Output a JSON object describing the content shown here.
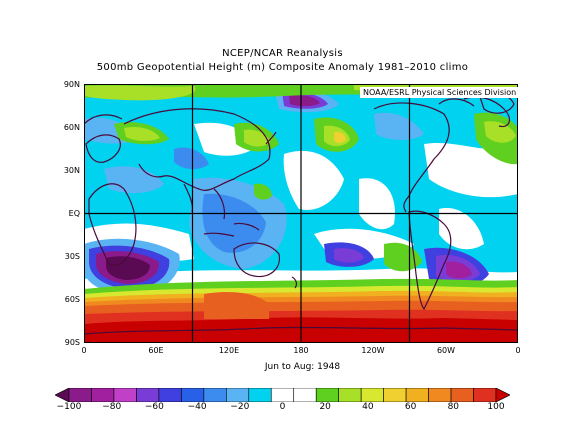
{
  "title_line1": "NCEP/NCAR Reanalysis",
  "title_line2": "500mb Geopotential Height (m) Composite Anomaly 1981–2010 climo",
  "credit": "NOAA/ESRL Physical Sciences Division",
  "caption": "Jun to Aug: 1948",
  "lat_labels": [
    "90N",
    "60N",
    "30N",
    "EQ",
    "30S",
    "60S",
    "90S"
  ],
  "lon_labels": [
    "0",
    "60E",
    "120E",
    "180",
    "120W",
    "60W",
    "0"
  ],
  "colorbar": {
    "labels": [
      "−100",
      "−80",
      "−60",
      "−40",
      "−20",
      "0",
      "20",
      "40",
      "60",
      "80",
      "100"
    ],
    "colors": [
      "#5a0a52",
      "#8b1a8b",
      "#a020a0",
      "#c040c8",
      "#7a3cd6",
      "#4040e0",
      "#2860e8",
      "#3c8cf0",
      "#5ab4f4",
      "#00d2f0",
      "#ffffff",
      "#ffffff",
      "#60d020",
      "#a8e028",
      "#d8e830",
      "#f0d030",
      "#f0b020",
      "#f08a20",
      "#e86020",
      "#e03020",
      "#c80000"
    ]
  },
  "colors": {
    "frame": "#000000",
    "coast": "#4a0a3a",
    "grid": "#000000"
  }
}
